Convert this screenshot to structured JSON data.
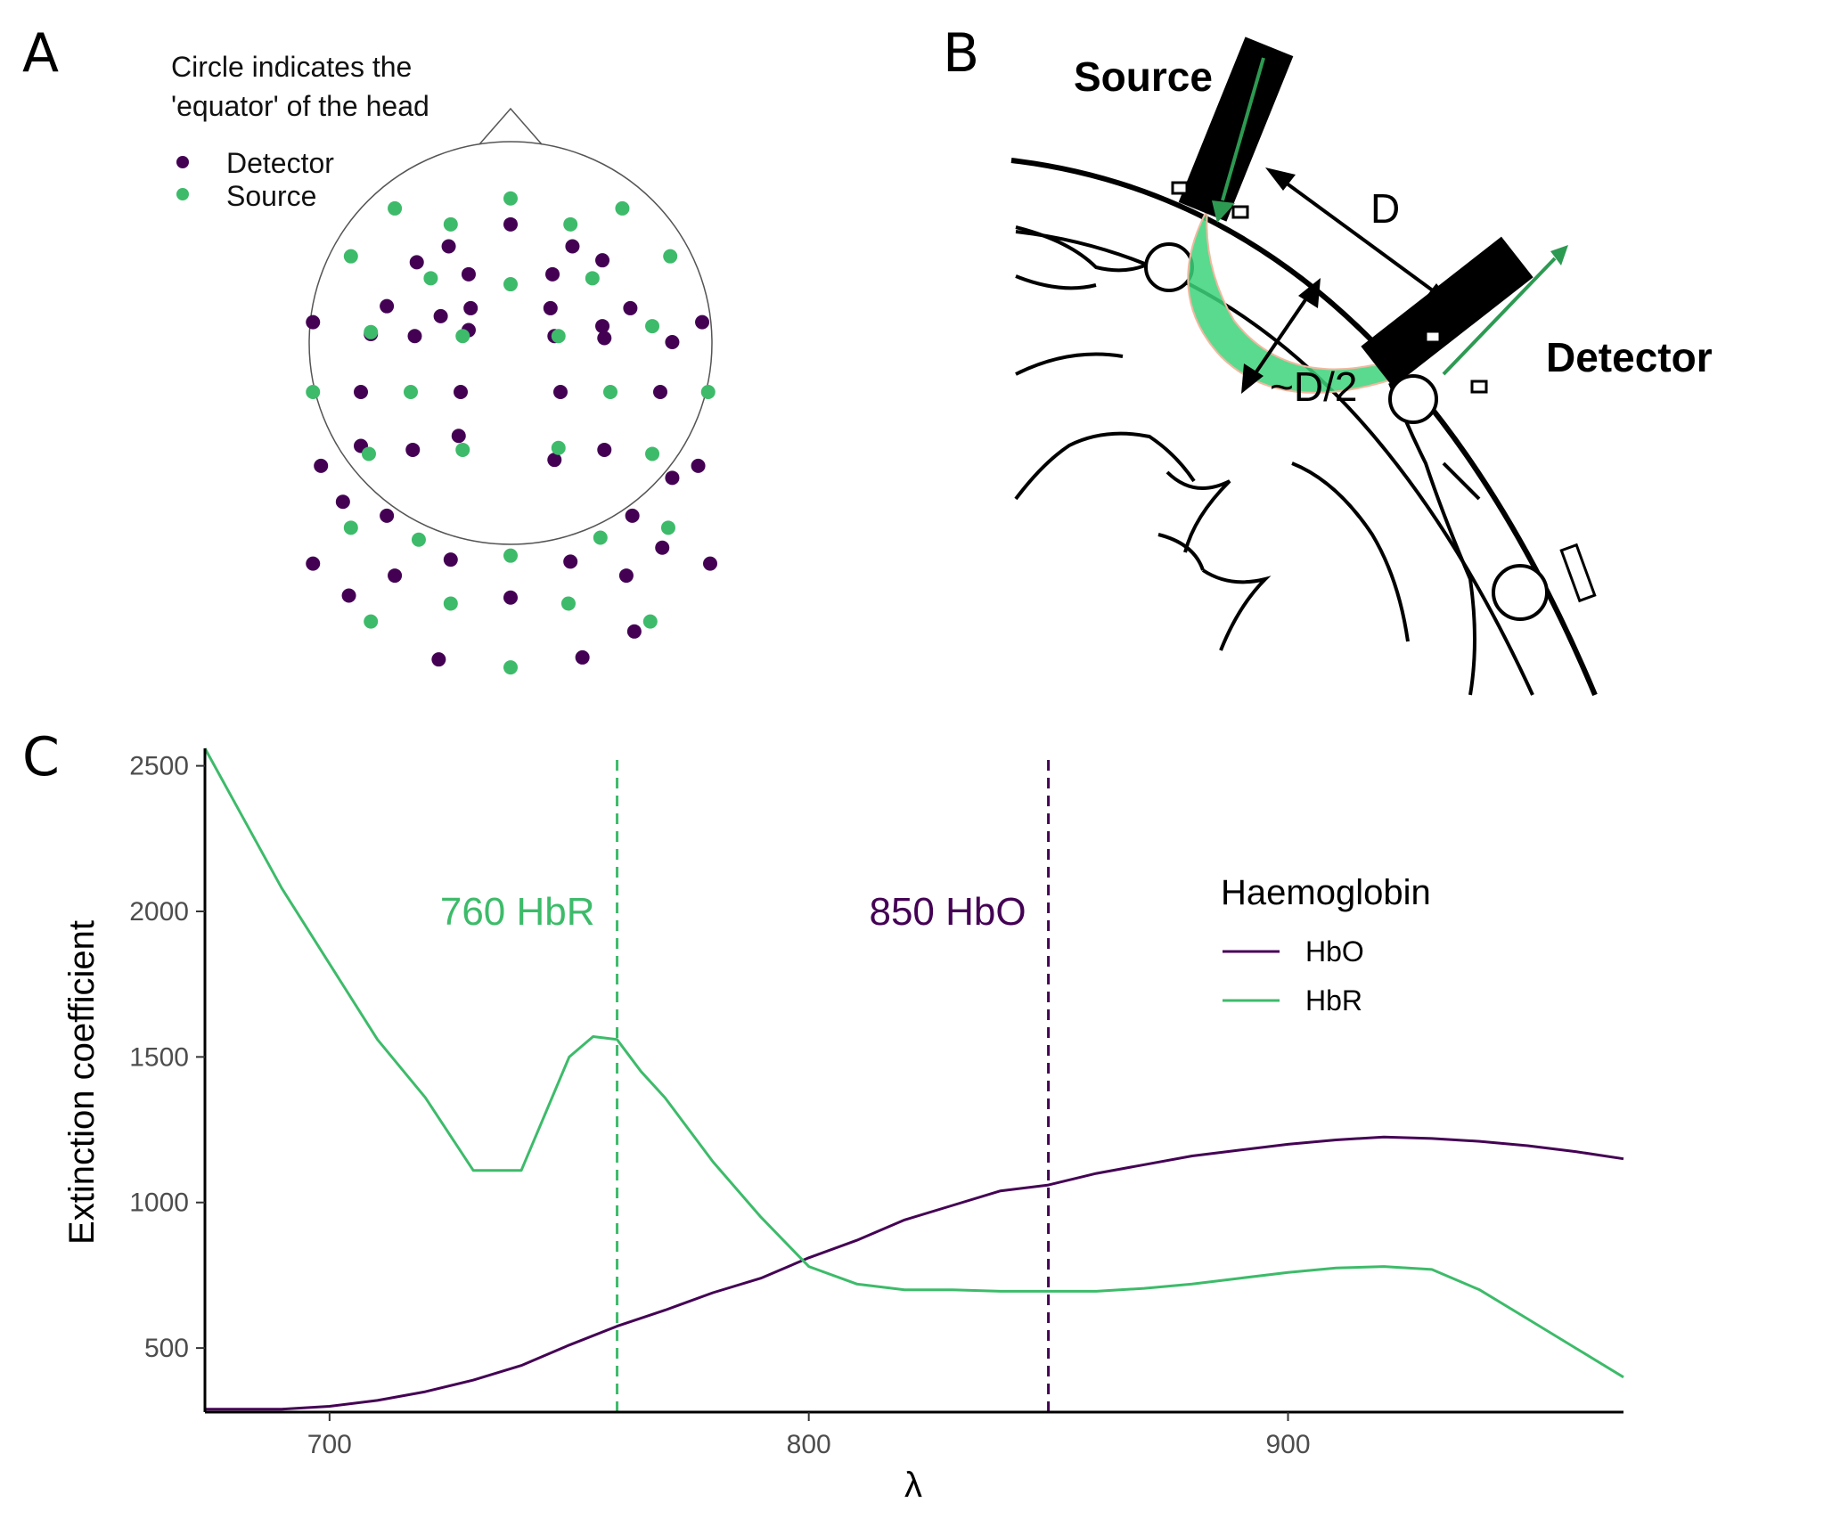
{
  "panels": {
    "a": {
      "letter": "A",
      "note_line1": "Circle indicates the",
      "note_line2": "'equator' of the head",
      "legend_detector": "Detector",
      "legend_source": "Source"
    },
    "b": {
      "letter": "B",
      "source_label": "Source",
      "detector_label": "Detector",
      "d_label": "D",
      "half_d_label": "~D/2"
    },
    "c": {
      "letter": "C"
    }
  },
  "colors": {
    "hbo": "#440154",
    "hbr": "#3dbb6a",
    "axis": "#000000",
    "tick_text": "#4d4d4d"
  },
  "montage": {
    "detectors": [
      [
        0.0,
        0.84
      ],
      [
        0.31,
        0.73
      ],
      [
        -0.31,
        0.73
      ],
      [
        -0.21,
        0.59
      ],
      [
        0.21,
        0.59
      ],
      [
        -0.47,
        0.65
      ],
      [
        0.46,
        0.66
      ],
      [
        -0.62,
        0.43
      ],
      [
        0.6,
        0.42
      ],
      [
        -0.2,
        0.42
      ],
      [
        0.2,
        0.42
      ],
      [
        -0.35,
        0.38
      ],
      [
        0.22,
        0.28
      ],
      [
        -0.99,
        0.35
      ],
      [
        0.96,
        0.35
      ],
      [
        -0.7,
        0.29
      ],
      [
        0.46,
        0.33
      ],
      [
        -0.21,
        0.31
      ],
      [
        0.81,
        0.25
      ],
      [
        -0.48,
        0.28
      ],
      [
        0.47,
        0.27
      ],
      [
        -0.75,
        0.0
      ],
      [
        -0.25,
        0.0
      ],
      [
        0.25,
        0.0
      ],
      [
        0.75,
        0.0
      ],
      [
        -0.75,
        -0.27
      ],
      [
        -0.26,
        -0.22
      ],
      [
        0.22,
        -0.34
      ],
      [
        0.47,
        -0.29
      ],
      [
        -0.49,
        -0.29
      ],
      [
        0.81,
        -0.43
      ],
      [
        -0.95,
        -0.37
      ],
      [
        0.94,
        -0.37
      ],
      [
        -0.84,
        -0.55
      ],
      [
        -0.62,
        -0.62
      ],
      [
        0.61,
        -0.62
      ],
      [
        0.76,
        -0.78
      ],
      [
        -0.99,
        -0.86
      ],
      [
        -0.58,
        -0.92
      ],
      [
        -0.3,
        -0.84
      ],
      [
        0.3,
        -0.85
      ],
      [
        0.58,
        -0.92
      ],
      [
        1.0,
        -0.86
      ],
      [
        0.0,
        -1.03
      ],
      [
        -0.81,
        -1.02
      ],
      [
        0.62,
        -1.2
      ],
      [
        -0.36,
        -1.34
      ],
      [
        0.36,
        -1.33
      ]
    ],
    "sources": [
      [
        0.0,
        0.97
      ],
      [
        -0.58,
        0.92
      ],
      [
        0.56,
        0.92
      ],
      [
        -0.3,
        0.84
      ],
      [
        0.3,
        0.84
      ],
      [
        -0.8,
        0.68
      ],
      [
        0.8,
        0.68
      ],
      [
        -0.4,
        0.57
      ],
      [
        0.0,
        0.54
      ],
      [
        0.41,
        0.57
      ],
      [
        -0.7,
        0.3
      ],
      [
        -0.24,
        0.28
      ],
      [
        0.24,
        0.28
      ],
      [
        0.71,
        0.33
      ],
      [
        -0.99,
        0.0
      ],
      [
        -0.5,
        0.0
      ],
      [
        0.5,
        0.0
      ],
      [
        0.99,
        0.0
      ],
      [
        -0.71,
        -0.31
      ],
      [
        -0.24,
        -0.29
      ],
      [
        0.24,
        -0.28
      ],
      [
        0.71,
        -0.31
      ],
      [
        -0.8,
        -0.68
      ],
      [
        -0.46,
        -0.74
      ],
      [
        0.45,
        -0.73
      ],
      [
        0.79,
        -0.68
      ],
      [
        0.0,
        -0.82
      ],
      [
        -0.3,
        -1.06
      ],
      [
        0.29,
        -1.06
      ],
      [
        -0.7,
        -1.15
      ],
      [
        0.7,
        -1.15
      ],
      [
        0.0,
        -1.38
      ]
    ]
  },
  "chart_data": {
    "type": "line",
    "xlabel": "λ",
    "ylabel": "Extinction coefficient",
    "xlim": [
      674,
      970
    ],
    "ylim": [
      280,
      2560
    ],
    "xticks": [
      700,
      800,
      900
    ],
    "yticks": [
      500,
      1000,
      1500,
      2000,
      2500
    ],
    "x_tick_labels": [
      "700",
      "800",
      "900"
    ],
    "y_tick_labels": [
      "500",
      "1000",
      "1500",
      "2000",
      "2500"
    ],
    "legend_title": "Haemoglobin",
    "series": [
      {
        "name": "HbO",
        "color": "#440154",
        "x": [
          674,
          690,
          700,
          710,
          720,
          730,
          740,
          750,
          760,
          770,
          780,
          790,
          800,
          810,
          820,
          830,
          840,
          850,
          860,
          870,
          880,
          890,
          900,
          910,
          920,
          930,
          940,
          950,
          960,
          970
        ],
        "y": [
          290,
          290,
          300,
          320,
          350,
          390,
          440,
          510,
          575,
          630,
          690,
          740,
          810,
          870,
          940,
          990,
          1040,
          1060,
          1100,
          1130,
          1160,
          1180,
          1200,
          1215,
          1225,
          1220,
          1210,
          1195,
          1175,
          1150
        ]
      },
      {
        "name": "HbR",
        "color": "#3dbb6a",
        "x": [
          674,
          680,
          690,
          700,
          710,
          720,
          730,
          740,
          750,
          755,
          760,
          765,
          770,
          780,
          790,
          800,
          810,
          820,
          830,
          840,
          850,
          860,
          870,
          880,
          890,
          900,
          910,
          920,
          930,
          940,
          950,
          960,
          970
        ],
        "y": [
          2560,
          2380,
          2080,
          1820,
          1560,
          1360,
          1110,
          1110,
          1500,
          1570,
          1560,
          1450,
          1360,
          1140,
          950,
          780,
          720,
          700,
          700,
          695,
          695,
          695,
          705,
          720,
          740,
          760,
          775,
          780,
          770,
          700,
          600,
          500,
          400
        ]
      }
    ],
    "annotations": [
      {
        "x": 760,
        "label": "760 HbR",
        "color": "#3dbb6a"
      },
      {
        "x": 850,
        "label": "850 HbO",
        "color": "#440154"
      }
    ]
  }
}
